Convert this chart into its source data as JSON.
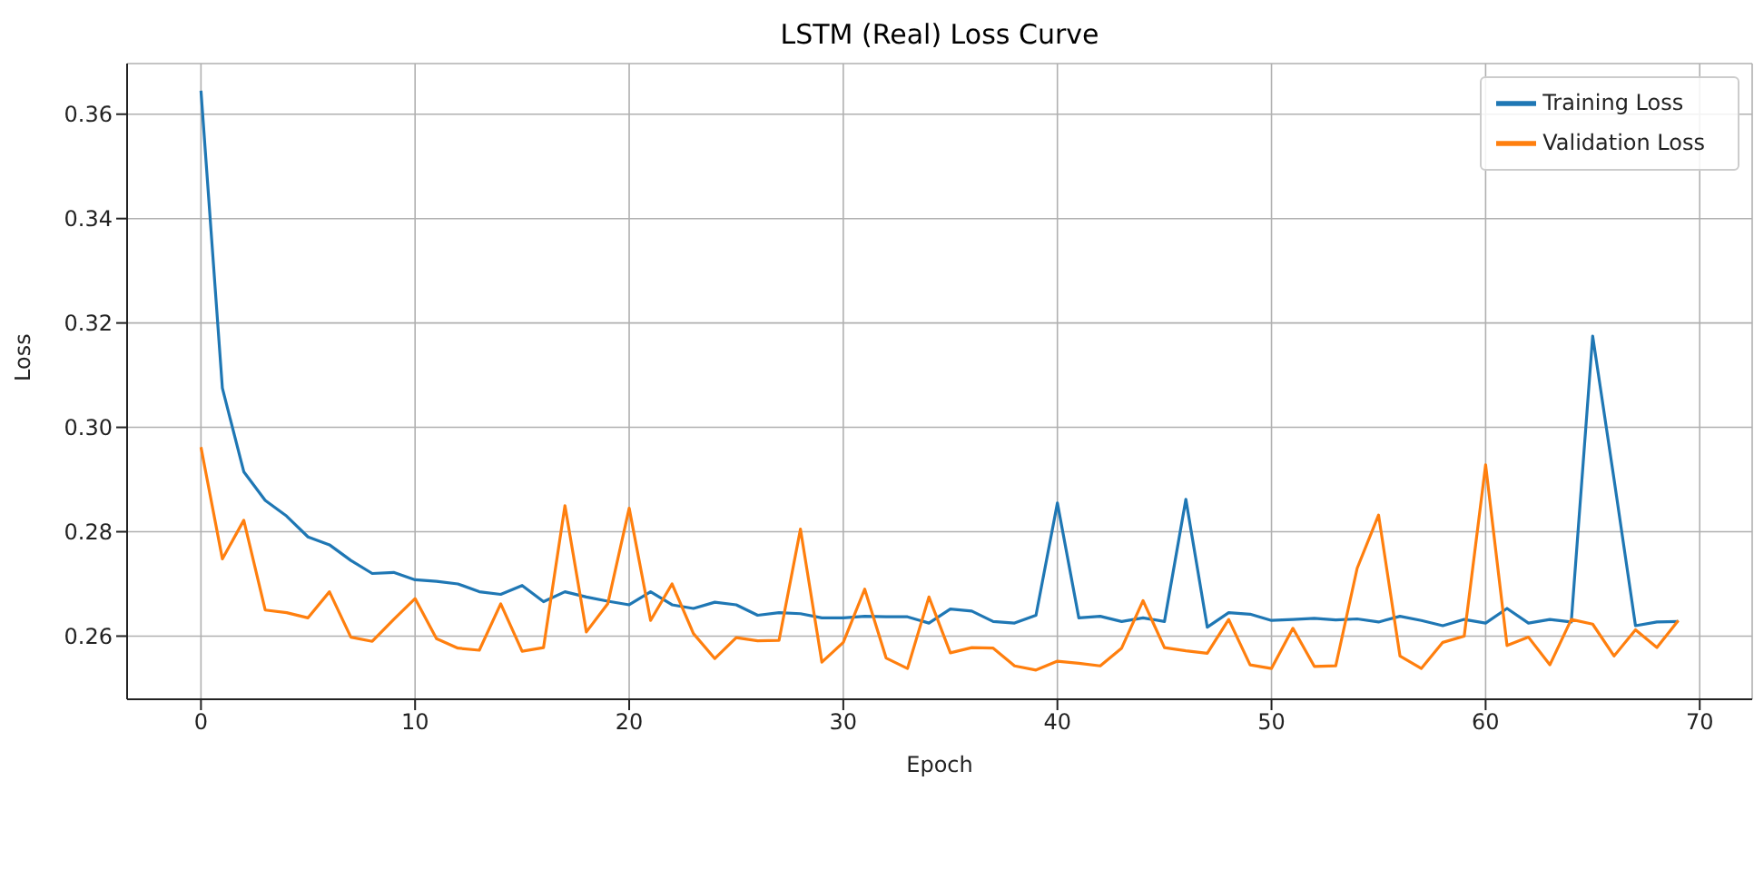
{
  "chart_data": {
    "type": "line",
    "title": "LSTM (Real) Loss Curve",
    "xlabel": "Epoch",
    "ylabel": "Loss",
    "x": [
      0,
      1,
      2,
      3,
      4,
      5,
      6,
      7,
      8,
      9,
      10,
      11,
      12,
      13,
      14,
      15,
      16,
      17,
      18,
      19,
      20,
      21,
      22,
      23,
      24,
      25,
      26,
      27,
      28,
      29,
      30,
      31,
      32,
      33,
      34,
      35,
      36,
      37,
      38,
      39,
      40,
      41,
      42,
      43,
      44,
      45,
      46,
      47,
      48,
      49,
      50,
      51,
      52,
      53,
      54,
      55,
      56,
      57,
      58,
      59,
      60,
      61,
      62,
      63,
      64,
      65,
      66,
      67,
      68,
      69
    ],
    "series": [
      {
        "name": "Training Loss",
        "color": "#1f77b4",
        "values": [
          0.3645,
          0.3075,
          0.2915,
          0.286,
          0.283,
          0.279,
          0.2775,
          0.2745,
          0.272,
          0.2722,
          0.2708,
          0.2705,
          0.27,
          0.2685,
          0.268,
          0.2697,
          0.2666,
          0.2685,
          0.2675,
          0.2667,
          0.266,
          0.2685,
          0.266,
          0.2653,
          0.2665,
          0.266,
          0.264,
          0.2645,
          0.2643,
          0.2635,
          0.2635,
          0.2638,
          0.2637,
          0.2637,
          0.2625,
          0.2652,
          0.2648,
          0.2628,
          0.2625,
          0.264,
          0.2855,
          0.2635,
          0.2638,
          0.2628,
          0.2635,
          0.2628,
          0.2862,
          0.2617,
          0.2645,
          0.2642,
          0.263,
          0.2632,
          0.2634,
          0.2631,
          0.2633,
          0.2627,
          0.2638,
          0.263,
          0.262,
          0.2632,
          0.2625,
          0.2653,
          0.2625,
          0.2632,
          0.2627,
          0.3175,
          0.29,
          0.262,
          0.2627,
          0.2628
        ]
      },
      {
        "name": "Validation Loss",
        "color": "#ff7f0e",
        "values": [
          0.2962,
          0.2748,
          0.2822,
          0.265,
          0.2645,
          0.2635,
          0.2685,
          0.2598,
          0.259,
          0.2632,
          0.2672,
          0.2595,
          0.2577,
          0.2573,
          0.2662,
          0.2571,
          0.2578,
          0.285,
          0.2608,
          0.2662,
          0.2845,
          0.263,
          0.27,
          0.2605,
          0.2557,
          0.2597,
          0.2591,
          0.2592,
          0.2805,
          0.255,
          0.2588,
          0.269,
          0.2558,
          0.2538,
          0.2675,
          0.2568,
          0.2578,
          0.2577,
          0.2543,
          0.2535,
          0.2552,
          0.2548,
          0.2543,
          0.2577,
          0.2668,
          0.2578,
          0.2572,
          0.2567,
          0.2632,
          0.2545,
          0.2538,
          0.2615,
          0.2542,
          0.2543,
          0.273,
          0.2832,
          0.2562,
          0.2538,
          0.2588,
          0.26,
          0.2928,
          0.2582,
          0.2598,
          0.2545,
          0.2632,
          0.2623,
          0.2562,
          0.2612,
          0.2578,
          0.263
        ]
      }
    ],
    "xlim": [
      -3.45,
      72.45
    ],
    "xticks": [
      0,
      10,
      20,
      30,
      40,
      50,
      60,
      70
    ],
    "ylim": [
      0.2479,
      0.3697
    ],
    "yticks": [
      {
        "value": 0.26,
        "label": "0.26"
      },
      {
        "value": 0.28,
        "label": "0.28"
      },
      {
        "value": 0.3,
        "label": "0.30"
      },
      {
        "value": 0.32,
        "label": "0.32"
      },
      {
        "value": 0.34,
        "label": "0.34"
      },
      {
        "value": 0.36,
        "label": "0.36"
      }
    ],
    "grid": true,
    "legend": "top right",
    "marker": "none",
    "line_style": "solid"
  }
}
